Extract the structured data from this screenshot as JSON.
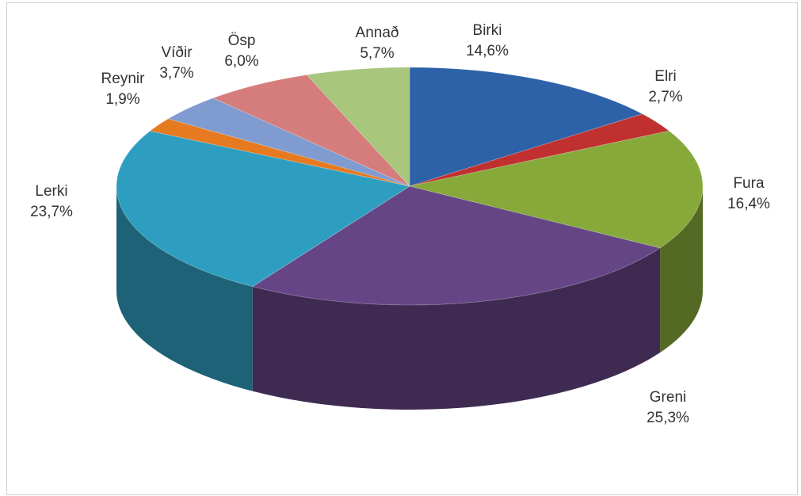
{
  "chart_data": {
    "type": "pie",
    "categories": [
      "Birki",
      "Elri",
      "Fura",
      "Greni",
      "Lerki",
      "Reynir",
      "Víðir",
      "Ösp",
      "Annað"
    ],
    "values": [
      14.6,
      2.7,
      16.4,
      25.3,
      23.7,
      1.9,
      3.7,
      6.0,
      5.7
    ],
    "value_labels": [
      "14,6%",
      "2,7%",
      "16,4%",
      "25,3%",
      "23,7%",
      "1,9%",
      "3,7%",
      "6,0%",
      "5,7%"
    ],
    "colors": [
      "#2e62a8",
      "#c0302f",
      "#86a93a",
      "#654585",
      "#2e9ec0",
      "#e67a20",
      "#7f9bd0",
      "#d57d7d",
      "#a8c67c"
    ]
  }
}
